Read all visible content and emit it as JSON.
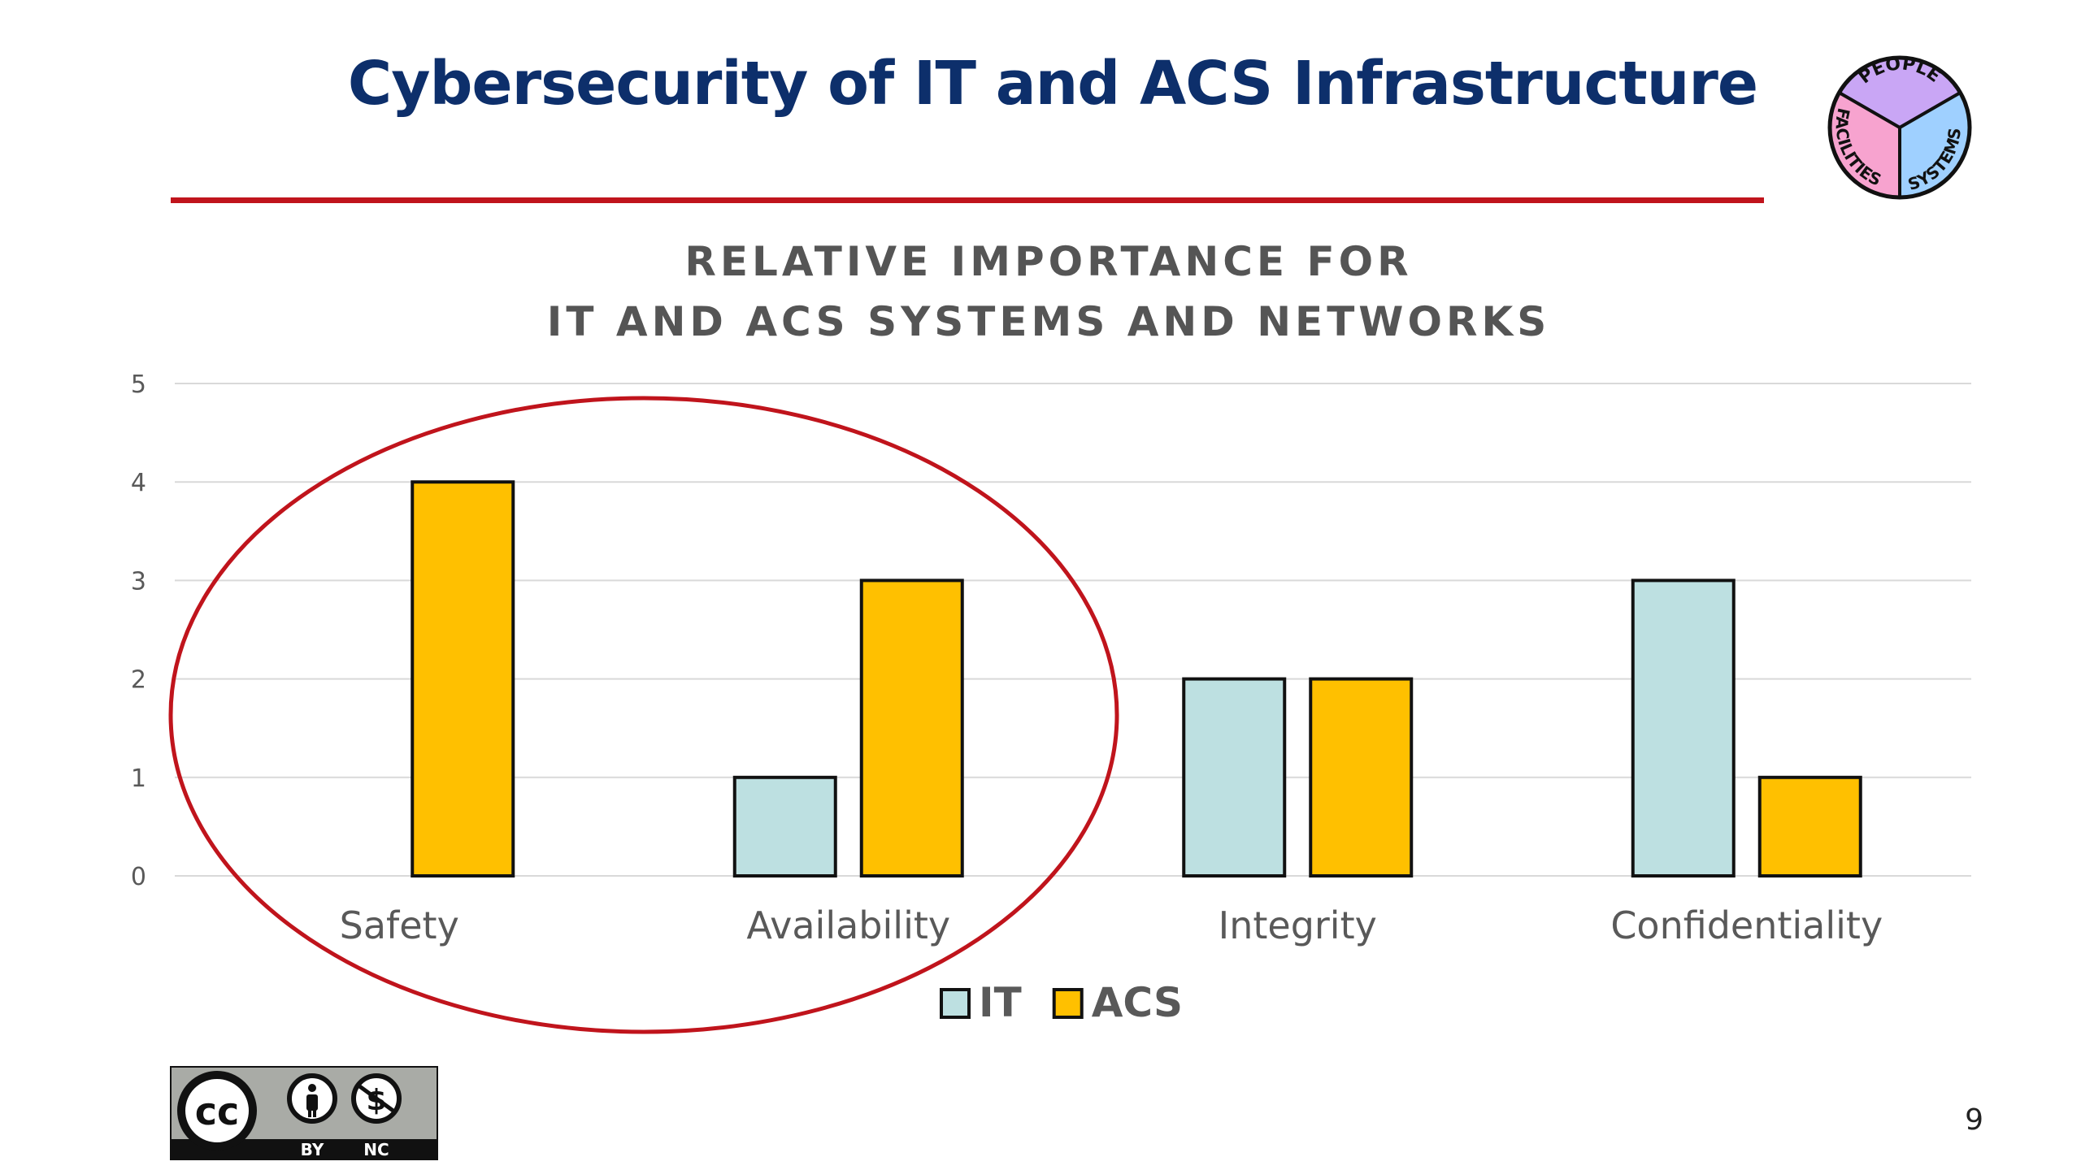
{
  "slide": {
    "title": "Cybersecurity of IT and ACS Infrastructure",
    "page_number": "9",
    "logo": {
      "top": "PEOPLE",
      "left": "FACILITIES",
      "right": "SYSTEMS",
      "colors": {
        "people": "#c9a6f5",
        "systems": "#9fd0ff",
        "facilities": "#f7a3cf"
      }
    },
    "license": {
      "icon": "cc-by-nc-icon",
      "labels": [
        "BY",
        "NC"
      ]
    }
  },
  "chart_data": {
    "type": "bar",
    "title_lines": [
      "RELATIVE IMPORTANCE FOR",
      "IT AND ACS SYSTEMS AND NETWORKS"
    ],
    "categories": [
      "Safety",
      "Availability",
      "Integrity",
      "Confidentiality"
    ],
    "series": [
      {
        "name": "IT",
        "values": [
          0,
          1,
          2,
          3
        ],
        "color": "#bde0e1"
      },
      {
        "name": "ACS",
        "values": [
          4,
          3,
          2,
          1
        ],
        "color": "#ffc000"
      }
    ],
    "ylim": [
      0,
      5
    ],
    "yticks": [
      "0",
      "1",
      "2",
      "3",
      "4",
      "5"
    ],
    "grid": true,
    "legend_position": "bottom",
    "annotation": {
      "shape": "ellipse",
      "color": "#c0141c",
      "encloses": [
        "Safety",
        "Availability"
      ]
    }
  }
}
